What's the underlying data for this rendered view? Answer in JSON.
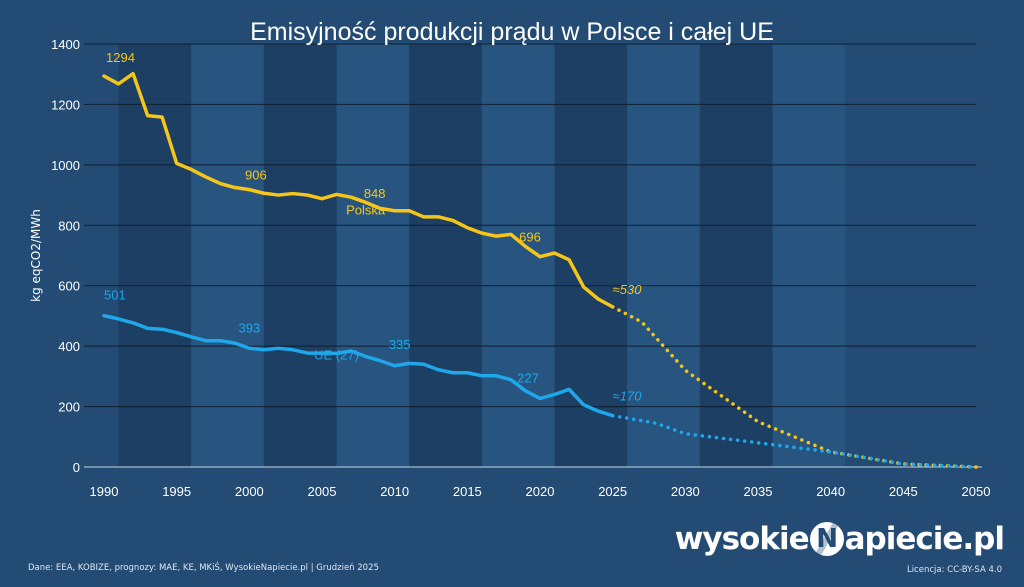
{
  "chart_data": {
    "type": "line",
    "title": "Emisyjność produkcji prądu w Polsce i całej UE",
    "ylabel": "kg eqCO2/MWh",
    "xlabel": "",
    "xlim": [
      1990,
      2050
    ],
    "ylim": [
      0,
      1400
    ],
    "x_ticks": [
      1990,
      1995,
      2000,
      2005,
      2010,
      2015,
      2020,
      2025,
      2030,
      2035,
      2040,
      2045,
      2050
    ],
    "y_ticks": [
      0,
      200,
      400,
      600,
      800,
      1000,
      1200,
      1400
    ],
    "grid": "horizontal",
    "background_bands": [
      [
        1991,
        1996
      ],
      [
        1996,
        2001
      ],
      [
        2001,
        2006
      ],
      [
        2006,
        2011
      ],
      [
        2011,
        2016
      ],
      [
        2016,
        2021
      ],
      [
        2021,
        2026
      ],
      [
        2026,
        2031
      ],
      [
        2031,
        2036
      ],
      [
        2036,
        2041
      ]
    ],
    "colors": {
      "background": "#234b73",
      "band_dark": "#1d3f63",
      "band_light": "#28557f",
      "grid": "#0e1f33",
      "polska": "#f5c518",
      "ue": "#1ea7ea",
      "text": "#ffffff"
    },
    "series": [
      {
        "name": "Polska",
        "color": "#f5c518",
        "x": [
          1990,
          1991,
          1992,
          1993,
          1994,
          1995,
          1996,
          1997,
          1998,
          1999,
          2000,
          2001,
          2002,
          2003,
          2004,
          2005,
          2006,
          2007,
          2008,
          2009,
          2010,
          2011,
          2012,
          2013,
          2014,
          2015,
          2016,
          2017,
          2018,
          2019,
          2020,
          2021,
          2022,
          2023,
          2024,
          2025
        ],
        "values": [
          1294,
          1268,
          1302,
          1163,
          1158,
          1005,
          985,
          960,
          938,
          925,
          918,
          906,
          900,
          905,
          900,
          888,
          902,
          893,
          876,
          856,
          848,
          848,
          828,
          828,
          816,
          792,
          774,
          764,
          770,
          730,
          696,
          708,
          686,
          596,
          556,
          530
        ],
        "projection": {
          "x": [
            2025,
            2027,
            2030,
            2035,
            2040,
            2045,
            2050
          ],
          "values": [
            530,
            480,
            320,
            150,
            50,
            10,
            0
          ]
        },
        "data_labels": [
          {
            "x": 1990,
            "label": "1294"
          },
          {
            "x": 2001,
            "label": "906"
          },
          {
            "x": 2010,
            "label": "848"
          },
          {
            "x": 2020,
            "label": "696"
          },
          {
            "x": 2025,
            "label": "≈530"
          }
        ],
        "series_label": "Polska"
      },
      {
        "name": "UE (27)",
        "color": "#1ea7ea",
        "x": [
          1990,
          1991,
          1992,
          1993,
          1994,
          1995,
          1996,
          1997,
          1998,
          1999,
          2000,
          2001,
          2002,
          2003,
          2004,
          2005,
          2006,
          2007,
          2008,
          2009,
          2010,
          2011,
          2012,
          2013,
          2014,
          2015,
          2016,
          2017,
          2018,
          2019,
          2020,
          2021,
          2022,
          2023,
          2024,
          2025
        ],
        "values": [
          501,
          490,
          477,
          459,
          456,
          445,
          431,
          418,
          418,
          410,
          393,
          388,
          393,
          388,
          377,
          377,
          376,
          384,
          366,
          352,
          335,
          343,
          340,
          322,
          312,
          312,
          302,
          302,
          289,
          252,
          227,
          240,
          257,
          206,
          185,
          170
        ],
        "projection": {
          "x": [
            2025,
            2028,
            2030,
            2035,
            2040,
            2045,
            2050
          ],
          "values": [
            170,
            145,
            110,
            80,
            50,
            10,
            0
          ]
        },
        "data_labels": [
          {
            "x": 1990,
            "label": "501"
          },
          {
            "x": 2000,
            "label": "393"
          },
          {
            "x": 2010,
            "label": "335"
          },
          {
            "x": 2020,
            "label": "227"
          },
          {
            "x": 2025,
            "label": "≈170"
          }
        ],
        "series_label": "UE (27)"
      }
    ]
  },
  "footer": {
    "source": "Dane: EEA, KOBIZE, prognozy: MAE, KE, MKiŚ, WysokieNapiecie.pl    |    Grudzień 2025",
    "brand_left": "wysokie",
    "brand_n": "N",
    "brand_right": "apiecie.pl",
    "license": "Licencja: CC-BY-SA 4.0"
  }
}
